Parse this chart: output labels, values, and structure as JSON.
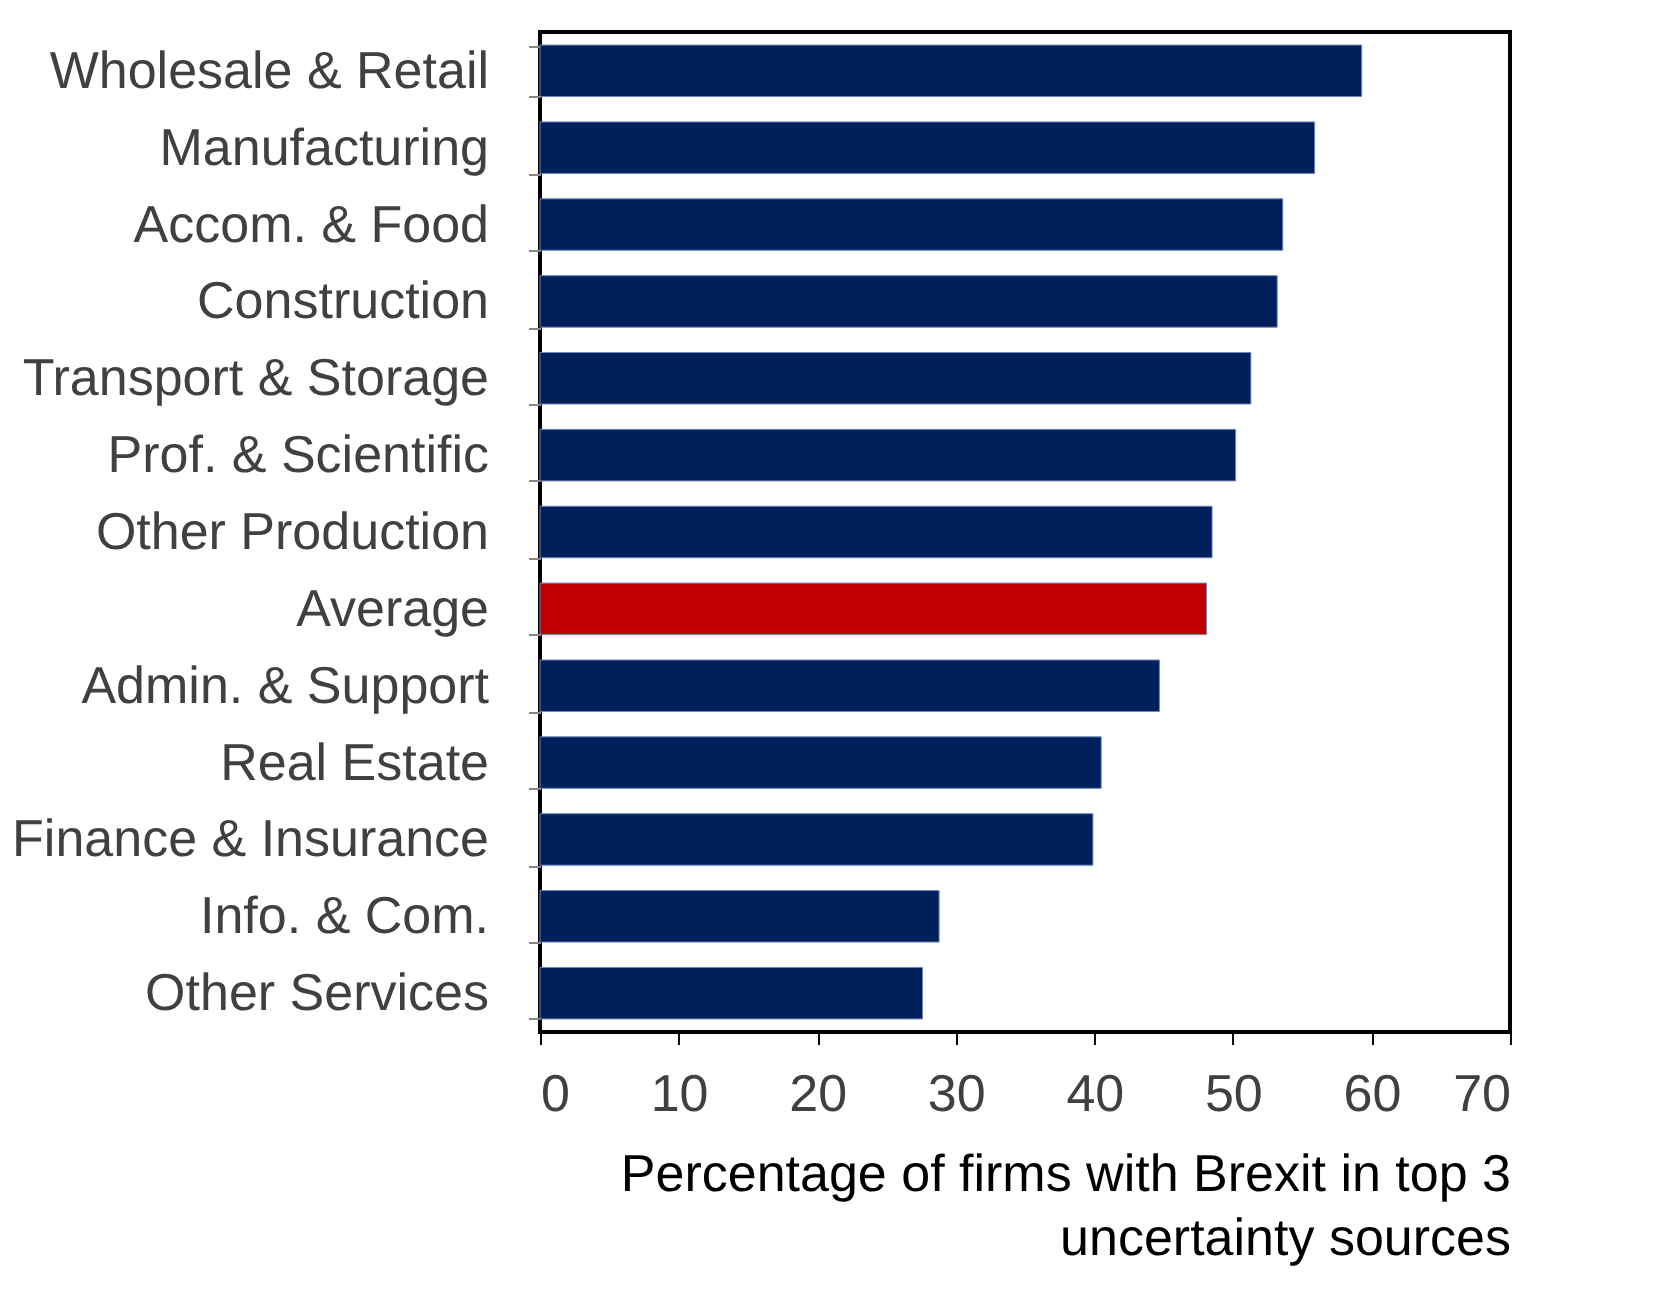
{
  "chart_data": {
    "type": "bar",
    "orientation": "horizontal",
    "categories": [
      "Wholesale & Retail",
      "Manufacturing",
      "Accom. & Food",
      "Construction",
      "Transport & Storage",
      "Prof. & Scientific",
      "Other Production",
      "Average",
      "Admin. & Support",
      "Real Estate",
      "Finance & Insurance",
      "Info. & Com.",
      "Other Services"
    ],
    "values": [
      59.3,
      55.9,
      53.6,
      53.2,
      51.3,
      50.2,
      48.5,
      48.1,
      44.7,
      40.5,
      39.9,
      28.8,
      27.6
    ],
    "colors": [
      "#00205b",
      "#00205b",
      "#00205b",
      "#00205b",
      "#00205b",
      "#00205b",
      "#00205b",
      "#c00000",
      "#00205b",
      "#00205b",
      "#00205b",
      "#00205b",
      "#00205b"
    ],
    "xlabel": "Percentage of firms with Brexit in top 3 uncertainty sources",
    "xlim": [
      0,
      70
    ],
    "xticks": [
      0,
      10,
      20,
      30,
      40,
      50,
      60,
      70
    ],
    "grid": false
  }
}
